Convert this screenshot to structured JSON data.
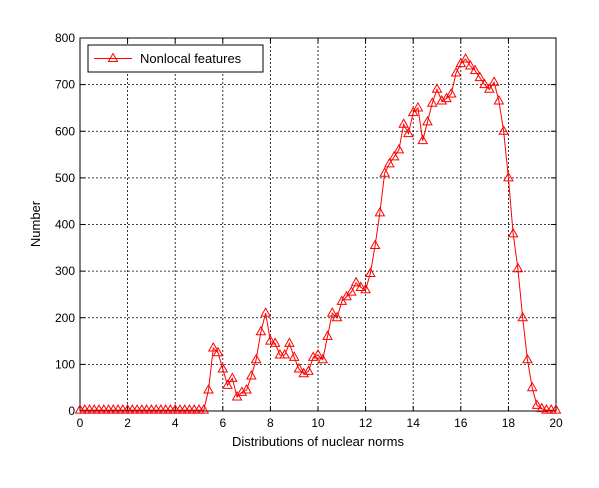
{
  "chart_data": {
    "type": "line",
    "xlabel": "Distributions of nuclear norms",
    "ylabel": "Number",
    "xlim": [
      0,
      20
    ],
    "ylim": [
      0,
      800
    ],
    "xticks": [
      "0",
      "2",
      "4",
      "6",
      "8",
      "10",
      "12",
      "14",
      "16",
      "18",
      "20"
    ],
    "yticks": [
      "0",
      "100",
      "200",
      "300",
      "400",
      "500",
      "600",
      "700",
      "800"
    ],
    "grid": true,
    "legend_position": "top-left",
    "series": [
      {
        "name": "Nonlocal features",
        "color": "#ff0000",
        "marker": "triangle",
        "x": [
          0,
          0.2,
          0.4,
          0.6,
          0.8,
          1.0,
          1.2,
          1.4,
          1.6,
          1.8,
          2.0,
          2.2,
          2.4,
          2.6,
          2.8,
          3.0,
          3.2,
          3.4,
          3.6,
          3.8,
          4.0,
          4.2,
          4.4,
          4.6,
          4.8,
          5.0,
          5.2,
          5.4,
          5.6,
          5.8,
          6.0,
          6.2,
          6.4,
          6.6,
          6.8,
          7.0,
          7.2,
          7.4,
          7.6,
          7.8,
          8.0,
          8.2,
          8.4,
          8.6,
          8.8,
          9.0,
          9.2,
          9.4,
          9.6,
          9.8,
          10.0,
          10.2,
          10.4,
          10.6,
          10.8,
          11.0,
          11.2,
          11.4,
          11.6,
          11.8,
          12.0,
          12.2,
          12.4,
          12.6,
          12.8,
          13.0,
          13.2,
          13.4,
          13.6,
          13.8,
          14.0,
          14.2,
          14.4,
          14.6,
          14.8,
          15.0,
          15.2,
          15.4,
          15.6,
          15.8,
          16.0,
          16.2,
          16.4,
          16.6,
          16.8,
          17.0,
          17.2,
          17.4,
          17.6,
          17.8,
          18.0,
          18.2,
          18.4,
          18.6,
          18.8,
          19.0,
          19.2,
          19.4,
          19.6,
          19.8,
          20.0
        ],
        "y": [
          2,
          2,
          2,
          2,
          2,
          2,
          2,
          2,
          2,
          2,
          2,
          2,
          2,
          2,
          2,
          2,
          2,
          2,
          2,
          2,
          2,
          2,
          2,
          2,
          2,
          2,
          2,
          45,
          135,
          125,
          90,
          55,
          70,
          30,
          40,
          45,
          75,
          110,
          170,
          210,
          150,
          145,
          120,
          120,
          145,
          115,
          90,
          80,
          85,
          115,
          120,
          110,
          160,
          210,
          200,
          235,
          245,
          255,
          275,
          265,
          260,
          295,
          355,
          425,
          510,
          530,
          545,
          560,
          615,
          595,
          640,
          650,
          580,
          620,
          660,
          690,
          665,
          670,
          680,
          725,
          745,
          755,
          740,
          730,
          715,
          700,
          690,
          705,
          665,
          600,
          500,
          380,
          305,
          200,
          110,
          50,
          12,
          5,
          2,
          2,
          2
        ]
      }
    ]
  }
}
